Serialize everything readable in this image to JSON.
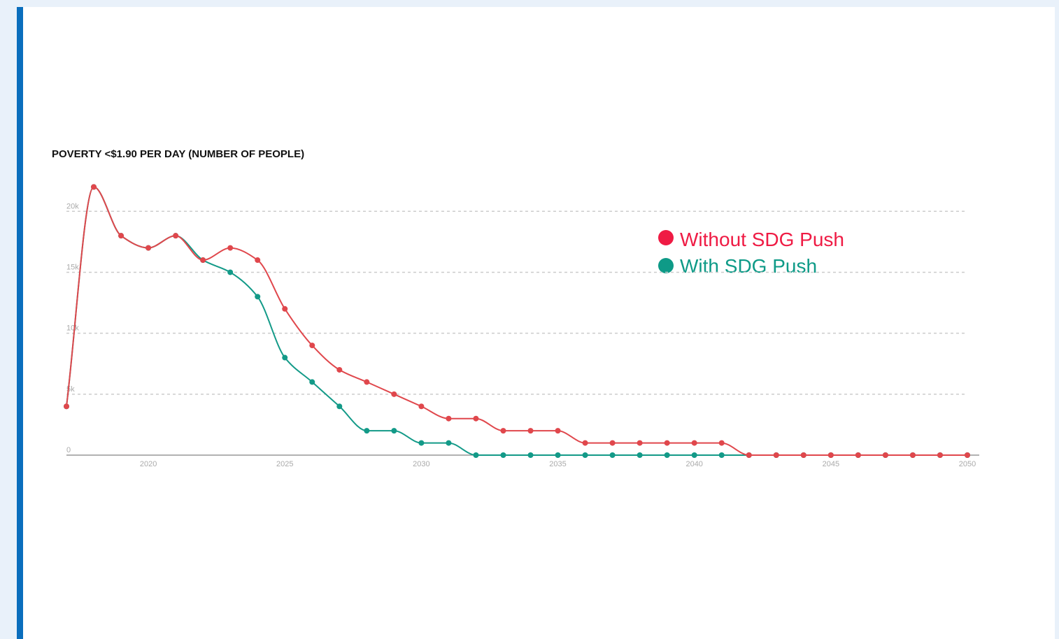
{
  "chart_data": {
    "type": "line",
    "title": "POVERTY <$1.90 PER DAY (NUMBER OF PEOPLE)",
    "x": [
      2017,
      2018,
      2019,
      2020,
      2021,
      2022,
      2023,
      2024,
      2025,
      2026,
      2027,
      2028,
      2029,
      2030,
      2031,
      2032,
      2033,
      2034,
      2035,
      2036,
      2037,
      2038,
      2039,
      2040,
      2041,
      2042,
      2043,
      2044,
      2045,
      2046,
      2047,
      2048,
      2049,
      2050
    ],
    "series": [
      {
        "name": "Without SDG Push",
        "color": "#e0474c",
        "legend_color": "#ef1b44",
        "values": [
          4000,
          22000,
          18000,
          17000,
          18000,
          16000,
          17000,
          16000,
          12000,
          9000,
          7000,
          6000,
          5000,
          4000,
          3000,
          3000,
          2000,
          2000,
          2000,
          1000,
          1000,
          1000,
          1000,
          1000,
          1000,
          0,
          0,
          0,
          0,
          0,
          0,
          0,
          0,
          0
        ]
      },
      {
        "name": "With SDG Push",
        "color": "#139a88",
        "legend_color": "#0e9a87",
        "values": [
          4000,
          22000,
          18000,
          17000,
          18000,
          16000,
          15000,
          13000,
          8000,
          6000,
          4000,
          2000,
          2000,
          1000,
          1000,
          0,
          0,
          0,
          0,
          0,
          0,
          0,
          0,
          0,
          0,
          0,
          0,
          0,
          0,
          0,
          0,
          0,
          0,
          0
        ]
      }
    ],
    "xlim": [
      2017,
      2050
    ],
    "xticks": [
      2020,
      2025,
      2030,
      2035,
      2040,
      2045,
      2050
    ],
    "ylim": [
      0,
      23000
    ],
    "yticks": [
      0,
      {
        "value": 5000,
        "label": "5k"
      },
      {
        "value": 10000,
        "label": "10k"
      },
      {
        "value": 15000,
        "label": "15k"
      },
      {
        "value": 20000,
        "label": "20k"
      }
    ],
    "grid": true
  }
}
